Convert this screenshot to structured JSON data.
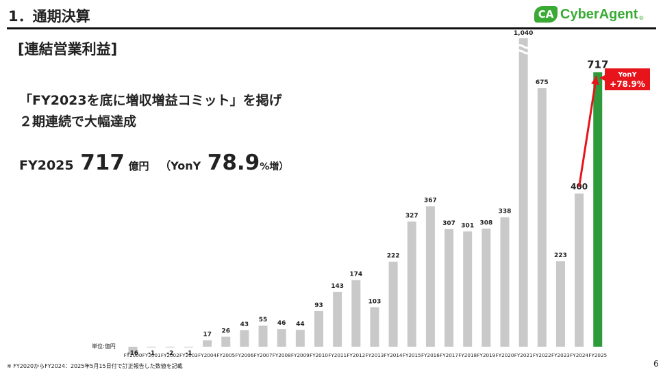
{
  "header": {
    "section_title": "1．通期決算",
    "logo_mark": "CA",
    "logo_text": "CyberAgent",
    "logo_reg": "®"
  },
  "slide": {
    "subtitle": "[連結営業利益]",
    "headline_line1": "「FY2023を底に増収増益コミット」を掲げ",
    "headline_line2": "２期連続で大幅達成",
    "result": {
      "label": "FY2025",
      "value": "717",
      "unit": "億円",
      "paren_open": "（",
      "yony_label": "YonY ",
      "rate": "78.9",
      "rate_suffix": "%増）",
      "paren_close": ""
    },
    "unit_label": "単位:億円",
    "footnote": "※ FY2020からFY2024：2025年5月15日付で訂正報告した数値を記載",
    "page_number": "6"
  },
  "colors": {
    "bar_gray": "#c9c9c9",
    "bar_highlight": "#2e9a3c",
    "arrow_red": "#e8141c",
    "logo_green": "#3aaa35"
  },
  "chart_data": {
    "type": "bar",
    "categories": [
      "FY2000",
      "FY2001",
      "FY2002",
      "FY2003",
      "FY2004",
      "FY2005",
      "FY2006",
      "FY2007",
      "FY2008",
      "FY2009",
      "FY2010",
      "FY2011",
      "FY2012",
      "FY2013",
      "FY2014",
      "FY2015",
      "FY2016",
      "FY2017",
      "FY2018",
      "FY2019",
      "FY2020",
      "FY2021",
      "FY2022",
      "FY2023",
      "FY2024",
      "FY2025"
    ],
    "values": [
      -16,
      -1,
      -2,
      -1,
      17,
      26,
      43,
      55,
      46,
      44,
      93,
      143,
      174,
      103,
      222,
      327,
      367,
      307,
      301,
      308,
      338,
      1040,
      675,
      223,
      400,
      717
    ],
    "labels": [
      "-16",
      "-1",
      "-2",
      "-1",
      "17",
      "26",
      "43",
      "55",
      "46",
      "44",
      "93",
      "143",
      "174",
      "103",
      "222",
      "327",
      "367",
      "307",
      "301",
      "308",
      "338",
      "1,040",
      "675",
      "223",
      "400",
      "717"
    ],
    "highlight_category": "FY2025",
    "broken_axis_category": "FY2021",
    "annotation": {
      "from": "FY2024",
      "to": "FY2025",
      "line1": "YonY",
      "line2": "+78.9%"
    },
    "title": "",
    "xlabel": "",
    "ylabel": "",
    "grid": false
  }
}
